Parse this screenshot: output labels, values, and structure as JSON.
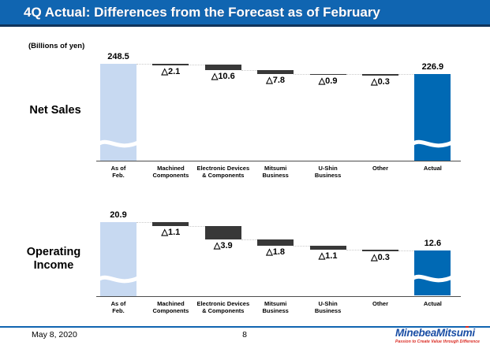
{
  "header": {
    "title": "4Q Actual: Differences from the Forecast as of February"
  },
  "units_label": "(Billions of yen)",
  "footer": {
    "date": "May 8, 2020",
    "page_number": "8",
    "logo_text": "MinebeaMitsumi",
    "logo_tagline": "Passion to Create Value through Difference"
  },
  "colors": {
    "header_bg": "#1065B1",
    "header_border": "#11345B",
    "start_bar": "#C7D9F1",
    "actual_bar": "#0069B4",
    "delta_bar": "#383838",
    "axis": "#4D4D4D",
    "connector": "#C9C9C9",
    "logo_blue": "#1B4FA5",
    "logo_red": "#D9251D"
  },
  "chart_data": [
    {
      "type": "bar",
      "subtype": "waterfall",
      "row_label": "Net Sales",
      "unit": "Billions of yen",
      "categories": [
        "As of Feb.",
        "Machined Components",
        "Electronic Devices & Components",
        "Mitsumi Business",
        "U-Shin Business",
        "Other",
        "Actual"
      ],
      "categories_lines": [
        [
          "As of",
          "Feb."
        ],
        [
          "Machined",
          "Components"
        ],
        [
          "Electronic Devices",
          "& Components"
        ],
        [
          "Mitsumi",
          "Business"
        ],
        [
          "U-Shin",
          "Business"
        ],
        [
          "Other"
        ],
        [
          "Actual"
        ]
      ],
      "start_value": 248.5,
      "deltas": [
        -2.1,
        -10.6,
        -7.8,
        -0.9,
        -0.3
      ],
      "end_value": 226.9,
      "start_label": "248.5",
      "end_label": "226.9",
      "delta_labels": [
        "△2.1",
        "△10.6",
        "△7.8",
        "△0.9",
        "△0.3"
      ],
      "legend": "none",
      "grid": "off"
    },
    {
      "type": "bar",
      "subtype": "waterfall",
      "row_label": "Operating Income",
      "unit": "Billions of yen",
      "categories": [
        "As of Feb.",
        "Machined Components",
        "Electronic Devices & Components",
        "Mitsumi Business",
        "U-Shin Business",
        "Other",
        "Actual"
      ],
      "categories_lines": [
        [
          "As of",
          "Feb."
        ],
        [
          "Machined",
          "Components"
        ],
        [
          "Electronic Devices",
          "& Components"
        ],
        [
          "Mitsumi",
          "Business"
        ],
        [
          "U-Shin",
          "Business"
        ],
        [
          "Other"
        ],
        [
          "Actual"
        ]
      ],
      "start_value": 20.9,
      "deltas": [
        -1.1,
        -3.9,
        -1.8,
        -1.1,
        -0.3
      ],
      "end_value": 12.6,
      "start_label": "20.9",
      "end_label": "12.6",
      "delta_labels": [
        "△1.1",
        "△3.9",
        "△1.8",
        "△1.1",
        "△0.3"
      ],
      "legend": "none",
      "grid": "off"
    }
  ]
}
